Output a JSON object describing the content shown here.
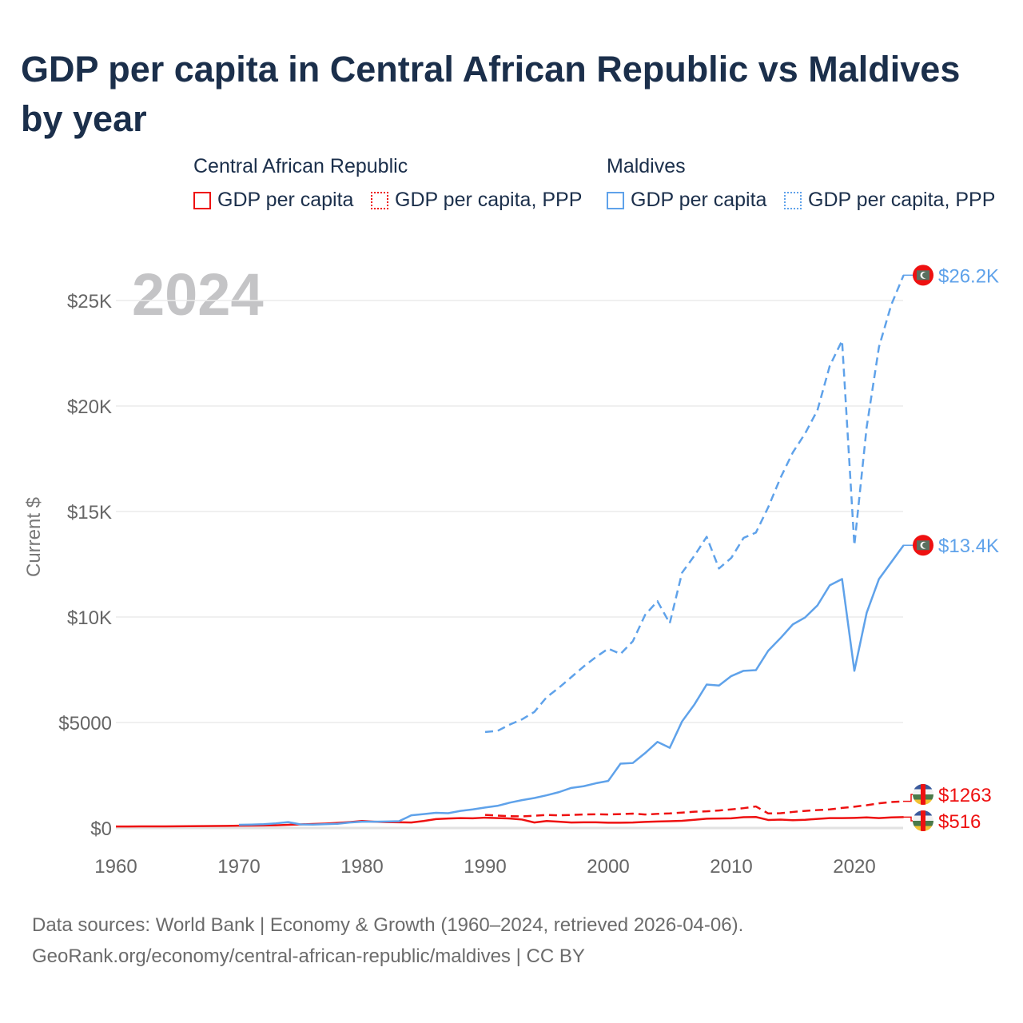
{
  "title": "GDP per capita in Central African Republic vs Maldives by year",
  "legend": {
    "groups": [
      {
        "label": "Central African Republic",
        "items": [
          "GDP per capita",
          "GDP per capita, PPP"
        ],
        "color": "#ee1111"
      },
      {
        "label": "Maldives",
        "items": [
          "GDP per capita",
          "GDP per capita, PPP"
        ],
        "color": "#5fa2ea"
      }
    ]
  },
  "year_overlay": "2024",
  "footer": {
    "line1": "Data sources: World Bank | Economy & Growth (1960–2024, retrieved 2026-04-06).",
    "line2": "GeoRank.org/economy/central-african-republic/maldives | CC BY"
  },
  "chart_data": {
    "type": "line",
    "title": "GDP per capita in Central African Republic vs Maldives by year",
    "xlabel": "",
    "ylabel": "Current $",
    "xlim": [
      1960,
      2024
    ],
    "ylim": [
      0,
      26500
    ],
    "x_ticks": [
      "1960",
      "1970",
      "1980",
      "1990",
      "2000",
      "2010",
      "2020"
    ],
    "x_tick_values": [
      1960,
      1970,
      1980,
      1990,
      2000,
      2010,
      2020
    ],
    "y_ticks": [
      "$0",
      "$5000",
      "$10K",
      "$15K",
      "$20K",
      "$25K"
    ],
    "y_tick_values": [
      0,
      5000,
      10000,
      15000,
      20000,
      25000
    ],
    "grid": true,
    "legend_position": "top",
    "series": [
      {
        "name": "Central African Republic GDP per capita",
        "color": "#ee1111",
        "dash": false,
        "end_label": "$516",
        "flag": "car",
        "start": 1960,
        "values": [
          70,
          72,
          74,
          76,
          78,
          80,
          85,
          90,
          95,
          100,
          110,
          115,
          120,
          130,
          150,
          170,
          190,
          210,
          240,
          280,
          330,
          300,
          280,
          270,
          260,
          330,
          420,
          450,
          470,
          460,
          490,
          470,
          450,
          400,
          260,
          330,
          300,
          260,
          270,
          270,
          250,
          250,
          260,
          290,
          310,
          320,
          340,
          390,
          440,
          450,
          460,
          510,
          520,
          380,
          400,
          370,
          390,
          430,
          470,
          470,
          480,
          500,
          470,
          500,
          516
        ]
      },
      {
        "name": "Central African Republic GDP per capita, PPP",
        "color": "#ee1111",
        "dash": true,
        "end_label": "$1263",
        "flag": "car",
        "start": 1990,
        "values": [
          620,
          590,
          560,
          550,
          580,
          620,
          600,
          620,
          640,
          650,
          640,
          660,
          680,
          640,
          670,
          690,
          730,
          770,
          790,
          830,
          880,
          940,
          1020,
          690,
          700,
          760,
          810,
          850,
          880,
          950,
          1010,
          1080,
          1170,
          1230,
          1263
        ]
      },
      {
        "name": "Maldives GDP per capita",
        "color": "#5fa2ea",
        "dash": false,
        "end_label": "$13.4K",
        "flag": "mdv",
        "start": 1970,
        "values": [
          150,
          160,
          180,
          220,
          280,
          170,
          160,
          180,
          200,
          260,
          300,
          300,
          310,
          320,
          600,
          660,
          720,
          700,
          810,
          880,
          970,
          1050,
          1200,
          1320,
          1420,
          1550,
          1700,
          1900,
          1980,
          2120,
          2230,
          3050,
          3080,
          3550,
          4080,
          3800,
          5050,
          5850,
          6800,
          6750,
          7200,
          7450,
          7480,
          8400,
          9000,
          9650,
          9980,
          10550,
          11500,
          11800,
          7450,
          10200,
          11800,
          12600,
          13400
        ]
      },
      {
        "name": "Maldives GDP per capita, PPP",
        "color": "#5fa2ea",
        "dash": true,
        "end_label": "$26.2K",
        "flag": "mdv",
        "start": 1990,
        "values": [
          4550,
          4600,
          4900,
          5150,
          5500,
          6200,
          6650,
          7150,
          7650,
          8100,
          8500,
          8250,
          8850,
          10100,
          10750,
          9700,
          12100,
          12900,
          13800,
          12300,
          12800,
          13750,
          14000,
          15200,
          16600,
          17800,
          18700,
          19800,
          21900,
          23100,
          13400,
          19000,
          22800,
          24800,
          26200
        ]
      }
    ]
  }
}
